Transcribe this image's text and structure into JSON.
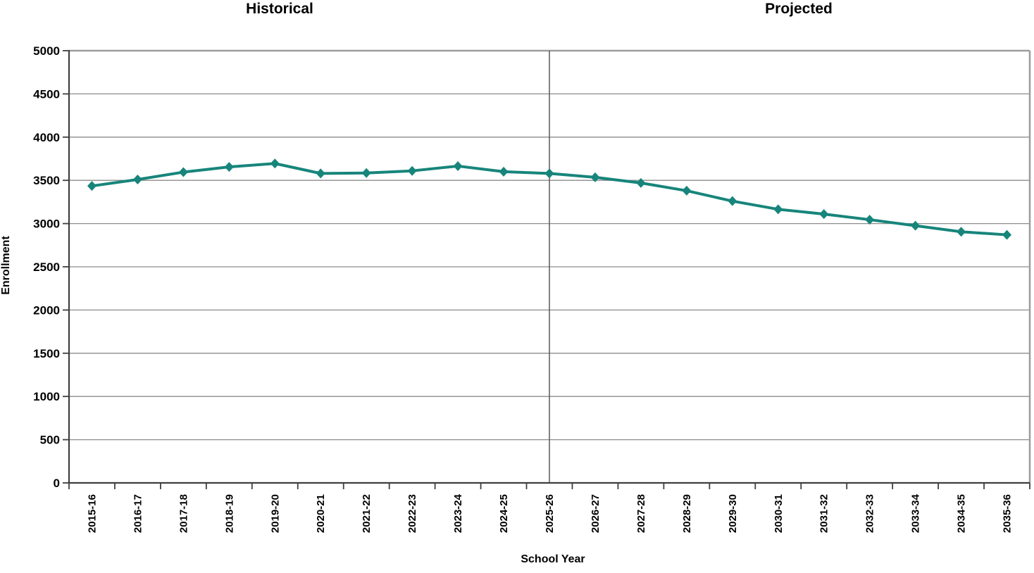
{
  "section_labels": {
    "historical": "Historical",
    "projected": "Projected"
  },
  "chart_data": {
    "type": "line",
    "title": "",
    "xlabel": "School Year",
    "ylabel": "Enrollment",
    "ylim": [
      0,
      5000
    ],
    "y_ticks": [
      0,
      500,
      1000,
      1500,
      2000,
      2500,
      3000,
      3500,
      4000,
      4500,
      5000
    ],
    "categories": [
      "2015-16",
      "2016-17",
      "2017-18",
      "2018-19",
      "2019-20",
      "2020-21",
      "2021-22",
      "2022-23",
      "2023-24",
      "2024-25",
      "2025-26",
      "2026-27",
      "2027-28",
      "2028-29",
      "2029-30",
      "2030-31",
      "2031-32",
      "2032-33",
      "2033-34",
      "2034-35",
      "2035-36"
    ],
    "series": [
      {
        "name": "Enrollment",
        "values": [
          3435,
          3510,
          3595,
          3655,
          3695,
          3580,
          3585,
          3610,
          3665,
          3600,
          3580,
          3535,
          3470,
          3380,
          3260,
          3165,
          3110,
          3045,
          2975,
          2905,
          2870
        ]
      }
    ],
    "sections": [
      {
        "label": "Historical",
        "from": "2015-16",
        "to": "2025-26"
      },
      {
        "label": "Projected",
        "from": "2026-27",
        "to": "2035-36"
      }
    ],
    "divider_at_category": "2025-26",
    "grid": true,
    "legend_position": "none",
    "marker": "diamond",
    "colors": {
      "line": "#17857B",
      "gridline": "#8C8C8C",
      "border": "#9C9C9C",
      "axis": "#3F3F3F",
      "divider": "#595959",
      "text": "#000000"
    }
  }
}
